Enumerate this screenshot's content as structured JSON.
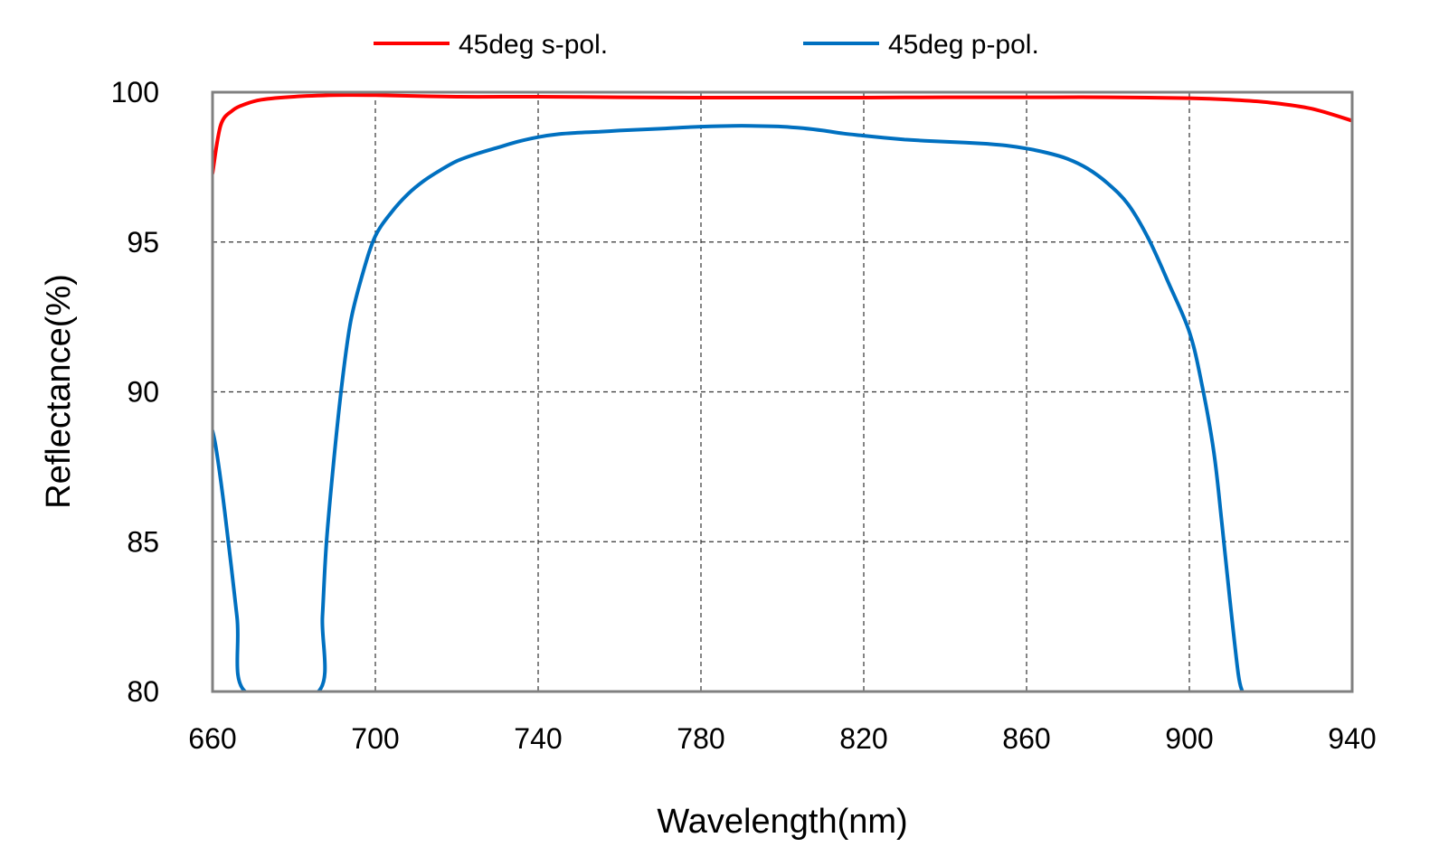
{
  "chart_data": {
    "type": "line",
    "title": "",
    "xlabel": "Wavelength(nm)",
    "ylabel": "Reflectance(%)",
    "xlim": [
      660,
      940
    ],
    "ylim": [
      80,
      100
    ],
    "xticks": [
      660,
      700,
      740,
      780,
      820,
      860,
      900,
      940
    ],
    "yticks": [
      80,
      85,
      90,
      95,
      100
    ],
    "grid": true,
    "legend_position": "top",
    "series": [
      {
        "name": "45deg s-pol.",
        "color": "#ff0000",
        "x": [
          660,
          662,
          665,
          668,
          672,
          680,
          690,
          700,
          720,
          740,
          760,
          780,
          800,
          820,
          840,
          860,
          880,
          900,
          910,
          920,
          930,
          940
        ],
        "y": [
          97.3,
          98.9,
          99.4,
          99.6,
          99.75,
          99.85,
          99.9,
          99.9,
          99.85,
          99.85,
          99.83,
          99.82,
          99.82,
          99.82,
          99.83,
          99.83,
          99.83,
          99.8,
          99.75,
          99.65,
          99.45,
          99.05
        ]
      },
      {
        "name": "45deg p-pol.",
        "color": "#0070c0",
        "x": [
          660,
          661,
          663,
          666,
          668,
          686,
          687,
          688,
          690,
          692,
          694,
          697,
          700,
          704,
          708,
          712,
          716,
          720,
          725,
          730,
          735,
          740,
          745,
          750,
          755,
          760,
          765,
          770,
          775,
          780,
          785,
          790,
          795,
          800,
          805,
          810,
          815,
          820,
          825,
          830,
          835,
          840,
          845,
          850,
          855,
          860,
          865,
          870,
          875,
          880,
          885,
          890,
          895,
          900,
          903,
          906,
          908,
          910,
          912,
          913
        ],
        "y": [
          88.7,
          88.0,
          86.0,
          82.5,
          80.0,
          80.0,
          82.5,
          85.0,
          88.0,
          90.5,
          92.4,
          94.0,
          95.2,
          96.0,
          96.6,
          97.05,
          97.4,
          97.7,
          97.95,
          98.15,
          98.35,
          98.5,
          98.6,
          98.65,
          98.68,
          98.72,
          98.75,
          98.78,
          98.82,
          98.85,
          98.87,
          98.88,
          98.87,
          98.85,
          98.8,
          98.72,
          98.62,
          98.55,
          98.48,
          98.42,
          98.38,
          98.35,
          98.32,
          98.28,
          98.22,
          98.12,
          97.98,
          97.78,
          97.45,
          96.95,
          96.25,
          95.1,
          93.6,
          92.0,
          90.3,
          88.0,
          85.6,
          83.0,
          80.6,
          80.0
        ]
      }
    ]
  }
}
